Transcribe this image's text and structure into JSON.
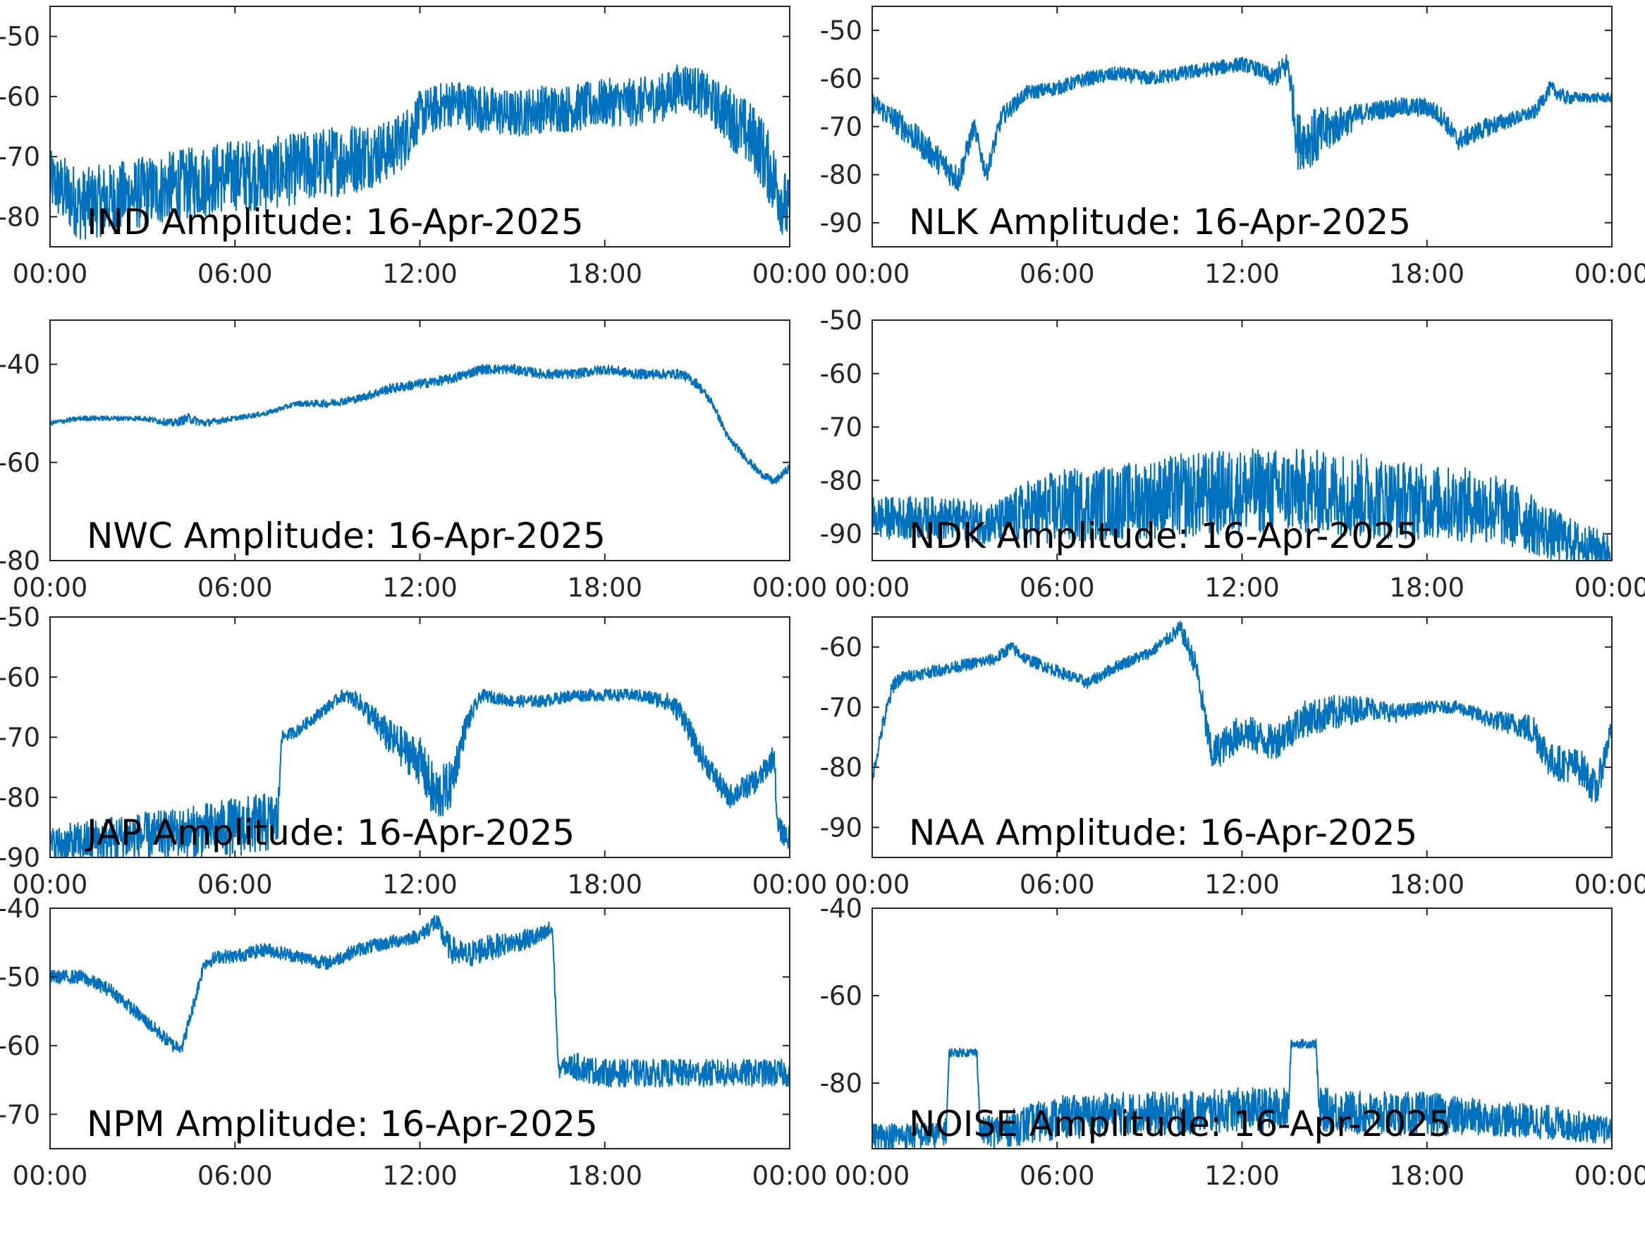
{
  "chart_data": [
    {
      "type": "line",
      "title": "IND Amplitude: 16-Apr-2025",
      "x_ticks": [
        "00:00",
        "06:00",
        "12:00",
        "18:00",
        "00:00"
      ],
      "xlim_hours": [
        0,
        24
      ],
      "y_ticks": [
        "-50",
        "-60",
        "-70",
        "-80"
      ],
      "y_tick_values": [
        -50,
        -60,
        -70,
        -80
      ],
      "ylim": [
        -85,
        -45
      ],
      "series": [
        {
          "color": "#0072bd",
          "x_hours": [
            0,
            0.5,
            1,
            2,
            3,
            4,
            5,
            6,
            7,
            8,
            9,
            10,
            11,
            11.5,
            12,
            12.5,
            13,
            14,
            15,
            16,
            17,
            18,
            19,
            20,
            20.5,
            21,
            21.5,
            22,
            23,
            24
          ],
          "values": [
            -74,
            -76,
            -78,
            -77,
            -76,
            -75,
            -74,
            -73,
            -73,
            -72,
            -71,
            -70,
            -69,
            -67,
            -63,
            -62,
            -61,
            -62,
            -63,
            -62,
            -62,
            -61,
            -61,
            -60,
            -58,
            -59,
            -61,
            -63,
            -68,
            -80
          ],
          "spread": [
            5,
            6,
            6,
            6,
            6,
            6,
            6,
            6,
            6,
            6,
            6,
            6,
            5,
            5,
            4,
            4,
            4,
            4,
            4,
            4,
            4,
            4,
            4,
            4,
            4,
            4,
            4,
            5,
            6,
            6
          ]
        }
      ]
    },
    {
      "type": "line",
      "title": "NLK Amplitude: 16-Apr-2025",
      "x_ticks": [
        "00:00",
        "06:00",
        "12:00",
        "18:00",
        "00:00"
      ],
      "xlim_hours": [
        0,
        24
      ],
      "y_ticks": [
        "-50",
        "-60",
        "-70",
        "-80",
        "-90"
      ],
      "y_tick_values": [
        -50,
        -60,
        -70,
        -80,
        -90
      ],
      "ylim": [
        -95,
        -45
      ],
      "series": [
        {
          "color": "#0072bd",
          "x_hours": [
            0,
            1,
            2,
            2.8,
            3.3,
            3.7,
            4.2,
            5,
            6,
            7,
            8,
            9,
            10,
            11,
            12,
            12.5,
            13,
            13.5,
            13.8,
            14.5,
            15,
            16,
            17,
            18,
            18.5,
            19,
            20,
            21,
            21.5,
            22,
            22.5,
            23,
            24
          ],
          "values": [
            -65,
            -70,
            -76,
            -81,
            -70,
            -80,
            -68,
            -63,
            -62,
            -60,
            -59,
            -60,
            -59,
            -58,
            -57,
            -58,
            -60,
            -57,
            -73,
            -72,
            -70,
            -67,
            -66,
            -66,
            -68,
            -73,
            -70,
            -68,
            -67,
            -62,
            -64,
            -64,
            -64
          ],
          "spread": [
            2,
            3,
            3,
            3,
            2,
            2,
            2,
            1.5,
            1.5,
            1.5,
            1.5,
            1.5,
            1.5,
            1.5,
            1.5,
            1.5,
            2,
            3,
            6,
            6,
            4,
            2,
            2,
            2,
            2,
            2,
            2,
            1.5,
            1.5,
            1.5,
            1.5,
            1,
            1
          ]
        }
      ]
    },
    {
      "type": "line",
      "title": "NWC Amplitude: 16-Apr-2025",
      "x_ticks": [
        "00:00",
        "06:00",
        "12:00",
        "18:00",
        "00:00"
      ],
      "xlim_hours": [
        0,
        24
      ],
      "y_ticks": [
        "-40",
        "-60",
        "-80"
      ],
      "y_tick_values": [
        -40,
        -60,
        -80
      ],
      "ylim": [
        -80,
        -31
      ],
      "series": [
        {
          "color": "#0072bd",
          "x_hours": [
            0,
            1,
            2,
            3,
            4,
            4.5,
            5,
            6,
            7,
            8,
            9,
            10,
            11,
            12,
            13,
            14,
            15,
            16,
            17,
            18,
            19,
            20,
            20.5,
            21,
            21.5,
            22,
            23,
            23.5,
            24
          ],
          "values": [
            -52,
            -51,
            -51,
            -51,
            -52,
            -51,
            -52,
            -51,
            -50,
            -48,
            -48,
            -47,
            -45,
            -44,
            -43,
            -41,
            -41,
            -42,
            -42,
            -41,
            -42,
            -42,
            -42,
            -44,
            -48,
            -55,
            -62,
            -64,
            -61
          ],
          "spread": [
            0.5,
            0.5,
            0.5,
            0.5,
            0.8,
            1,
            0.8,
            0.5,
            0.5,
            0.5,
            0.8,
            0.8,
            1,
            1,
            1,
            1,
            1,
            1,
            1,
            1,
            1,
            1,
            1,
            1,
            0.8,
            0.8,
            0.8,
            0.8,
            0.8
          ]
        }
      ]
    },
    {
      "type": "line",
      "title": "NDK Amplitude: 16-Apr-2025",
      "x_ticks": [
        "00:00",
        "06:00",
        "12:00",
        "18:00",
        "00:00"
      ],
      "xlim_hours": [
        0,
        24
      ],
      "y_ticks": [
        "-50",
        "-60",
        "-70",
        "-80",
        "-90"
      ],
      "y_tick_values": [
        -50,
        -60,
        -70,
        -80,
        -90
      ],
      "ylim": [
        -95,
        -50
      ],
      "series": [
        {
          "color": "#0072bd",
          "x_hours": [
            0,
            2,
            4,
            5,
            6,
            8,
            10,
            12,
            14,
            16,
            18,
            20,
            21,
            22,
            23,
            24
          ],
          "values": [
            -87,
            -87,
            -88,
            -86,
            -85,
            -84,
            -83,
            -82,
            -82,
            -83,
            -84,
            -85,
            -87,
            -90,
            -92,
            -93
          ],
          "spread": [
            4,
            4,
            4,
            6,
            7,
            7,
            8,
            8,
            8,
            8,
            7,
            7,
            6,
            5,
            4,
            3
          ]
        }
      ]
    },
    {
      "type": "line",
      "title": "JAP Amplitude: 16-Apr-2025",
      "x_ticks": [
        "00:00",
        "06:00",
        "12:00",
        "18:00",
        "00:00"
      ],
      "xlim_hours": [
        0,
        24
      ],
      "y_ticks": [
        "-50",
        "-60",
        "-70",
        "-80",
        "-90"
      ],
      "y_tick_values": [
        -50,
        -60,
        -70,
        -80,
        -90
      ],
      "ylim": [
        -90,
        -50
      ],
      "series": [
        {
          "color": "#0072bd",
          "x_hours": [
            0,
            2,
            4,
            6,
            7.4,
            7.5,
            8,
            9,
            9.5,
            10,
            11,
            12,
            12.5,
            13,
            13.5,
            14,
            15,
            16,
            17,
            18,
            19,
            20,
            20.5,
            21,
            22,
            23,
            23.5,
            23.6,
            24
          ],
          "values": [
            -88,
            -87,
            -86,
            -85,
            -84,
            -70,
            -69,
            -65,
            -63,
            -64,
            -70,
            -74,
            -80,
            -78,
            -68,
            -63,
            -64,
            -64,
            -63,
            -63,
            -63,
            -64,
            -66,
            -72,
            -80,
            -77,
            -73,
            -85,
            -87
          ],
          "spread": [
            3,
            4,
            4,
            5,
            5,
            1,
            1,
            1,
            1,
            1.5,
            3,
            4,
            5,
            4,
            2,
            1,
            1,
            1,
            1,
            1,
            1,
            1.5,
            2,
            2,
            2,
            2,
            2,
            2,
            2
          ]
        }
      ]
    },
    {
      "type": "line",
      "title": "NAA Amplitude: 16-Apr-2025",
      "x_ticks": [
        "00:00",
        "06:00",
        "12:00",
        "18:00",
        "00:00"
      ],
      "xlim_hours": [
        0,
        24
      ],
      "y_ticks": [
        "-60",
        "-70",
        "-80",
        "-90"
      ],
      "y_tick_values": [
        -60,
        -70,
        -80,
        -90
      ],
      "ylim": [
        -95,
        -55
      ],
      "series": [
        {
          "color": "#0072bd",
          "x_hours": [
            0,
            0.3,
            0.7,
            1,
            2,
            3,
            4,
            4.5,
            5,
            6,
            7,
            8,
            9,
            9.5,
            10,
            10.5,
            11,
            11.5,
            12,
            13,
            14,
            15,
            16,
            17,
            18,
            19,
            20,
            21,
            21.5,
            22,
            23,
            23.5,
            24
          ],
          "values": [
            -82,
            -74,
            -66,
            -65,
            -64,
            -63,
            -62,
            -60,
            -62,
            -64,
            -66,
            -63,
            -61,
            -59,
            -57,
            -63,
            -78,
            -76,
            -74,
            -76,
            -72,
            -71,
            -70,
            -71,
            -70,
            -70,
            -72,
            -73,
            -74,
            -79,
            -80,
            -84,
            -73
          ],
          "spread": [
            1,
            1.5,
            1.5,
            1,
            1,
            1,
            1,
            1,
            1,
            1,
            1,
            1,
            1,
            1,
            1.5,
            2,
            3,
            3,
            3,
            3,
            3,
            3,
            2,
            1.5,
            1,
            1,
            1.5,
            2,
            3,
            3,
            3,
            3,
            2
          ]
        }
      ]
    },
    {
      "type": "line",
      "title": "NPM Amplitude: 16-Apr-2025",
      "x_ticks": [
        "00:00",
        "06:00",
        "12:00",
        "18:00",
        "00:00"
      ],
      "xlim_hours": [
        0,
        24
      ],
      "y_ticks": [
        "-40",
        "-50",
        "-60",
        "-70"
      ],
      "y_tick_values": [
        -40,
        -50,
        -60,
        -70
      ],
      "ylim": [
        -75,
        -40
      ],
      "series": [
        {
          "color": "#0072bd",
          "x_hours": [
            0,
            1,
            2,
            3,
            4,
            4.3,
            4.6,
            5,
            5.5,
            6,
            7,
            8,
            9,
            10,
            11,
            12,
            12.5,
            13,
            13.5,
            14,
            15,
            16,
            16.3,
            16.5,
            16.6,
            17,
            18,
            20,
            22,
            24
          ],
          "values": [
            -50,
            -50,
            -52,
            -56,
            -60,
            -60,
            -55,
            -48,
            -47,
            -47,
            -46,
            -47,
            -48,
            -46,
            -45,
            -44,
            -42,
            -46,
            -47,
            -46,
            -45,
            -44,
            -43,
            -64,
            -63,
            -63,
            -64,
            -64,
            -64,
            -64
          ],
          "spread": [
            1,
            1,
            1,
            1,
            1,
            1,
            1,
            1,
            1,
            1,
            1,
            1,
            1,
            1,
            1,
            1,
            1.5,
            2,
            2,
            2,
            1.5,
            1.5,
            1.5,
            1,
            1,
            2,
            2,
            2,
            2,
            2
          ]
        }
      ]
    },
    {
      "type": "line",
      "title": "NOISE Amplitude: 16-Apr-2025",
      "x_ticks": [
        "00:00",
        "06:00",
        "12:00",
        "18:00",
        "00:00"
      ],
      "xlim_hours": [
        0,
        24
      ],
      "y_ticks": [
        "-40",
        "-60",
        "-80"
      ],
      "y_tick_values": [
        -40,
        -60,
        -80
      ],
      "ylim": [
        -95,
        -40
      ],
      "series": [
        {
          "color": "#0072bd",
          "x_hours": [
            0,
            2,
            2.4,
            2.5,
            3.4,
            3.5,
            4,
            6,
            8,
            10,
            12,
            13.5,
            13.6,
            14.4,
            14.5,
            16,
            18,
            20,
            22,
            24
          ],
          "values": [
            -92,
            -92,
            -91,
            -73,
            -73,
            -91,
            -91,
            -88,
            -87,
            -87,
            -86,
            -86,
            -71,
            -71,
            -86,
            -87,
            -87,
            -88,
            -89,
            -91
          ],
          "spread": [
            3,
            3,
            3,
            1,
            1,
            3,
            4,
            5,
            5,
            5,
            5,
            5,
            1,
            1,
            5,
            5,
            5,
            4,
            4,
            3
          ]
        }
      ]
    }
  ]
}
